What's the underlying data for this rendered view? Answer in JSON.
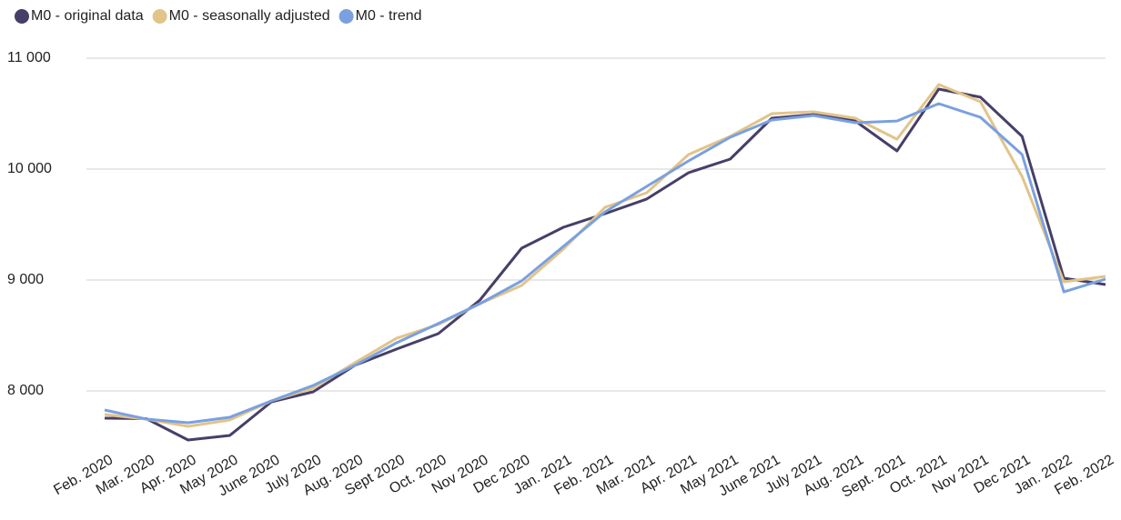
{
  "chart_data": {
    "type": "line",
    "categories": [
      "Feb. 2020",
      "Mar. 2020",
      "Apr. 2020",
      "May 2020",
      "June 2020",
      "July 2020",
      "Aug. 2020",
      "Sept 2020",
      "Oct. 2020",
      "Nov 2020",
      "Dec 2020",
      "Jan. 2021",
      "Feb. 2021",
      "Mar. 2021",
      "Apr. 2021",
      "May 2021",
      "June 2021",
      "July 2021",
      "Aug. 2021",
      "Sept. 2021",
      "Oct. 2021",
      "Nov 2021",
      "Dec 2021",
      "Jan. 2022",
      "Feb. 2022"
    ],
    "series": [
      {
        "name": "M0 - original data",
        "color": "#463f67",
        "values": [
          7754,
          7750,
          7557,
          7598,
          7902,
          7992,
          8230,
          8377,
          8516,
          8820,
          9287,
          9475,
          9598,
          9730,
          9967,
          10090,
          10459,
          10492,
          10434,
          10164,
          10721,
          10648,
          10295,
          9016,
          8959
        ]
      },
      {
        "name": "M0 - seasonally adjusted",
        "color": "#e2c48a",
        "values": [
          7787,
          7746,
          7680,
          7738,
          7910,
          8025,
          8254,
          8475,
          8598,
          8787,
          8951,
          9279,
          9656,
          9787,
          10131,
          10295,
          10500,
          10516,
          10459,
          10270,
          10762,
          10607,
          9934,
          8984,
          9033
        ]
      },
      {
        "name": "M0 - trend",
        "color": "#7aa0e0",
        "values": [
          7828,
          7746,
          7713,
          7762,
          7910,
          8049,
          8230,
          8434,
          8607,
          8787,
          8992,
          9303,
          9615,
          9844,
          10074,
          10287,
          10443,
          10484,
          10418,
          10434,
          10590,
          10467,
          10131,
          8893,
          9008
        ]
      }
    ],
    "ylim": [
      7500,
      11000
    ],
    "yticks": [
      {
        "value": 8000,
        "label": "8 000"
      },
      {
        "value": 9000,
        "label": "9 000"
      },
      {
        "value": 10000,
        "label": "10 000"
      },
      {
        "value": 11000,
        "label": "11 000"
      }
    ],
    "grid": true,
    "legend": "top"
  }
}
